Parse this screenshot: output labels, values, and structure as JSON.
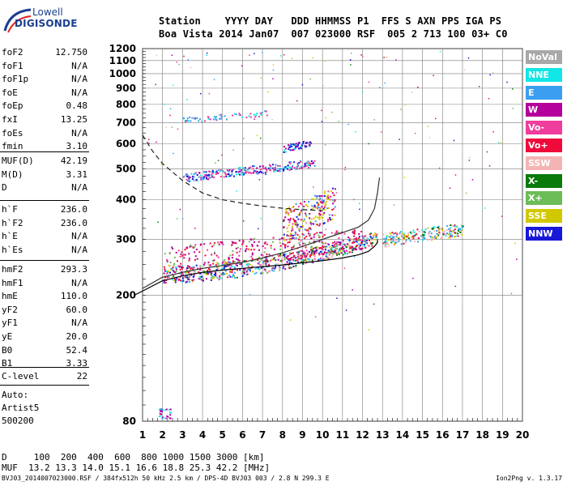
{
  "logo": {
    "line1": "Lowell",
    "line2": "DIGISONDE"
  },
  "header": {
    "row1": "Station    YYYY DAY   DDD HHMMSS P1  FFS S AXN PPS IGA PS",
    "row2": "Boa Vista 2014 Jan07  007 023000 RSF  005 2 713 100 03+ C0"
  },
  "params_group1": [
    {
      "name": "foF2",
      "value": "12.750"
    },
    {
      "name": "foF1",
      "value": "N/A"
    },
    {
      "name": "foF1p",
      "value": "N/A"
    },
    {
      "name": "foE",
      "value": "N/A"
    },
    {
      "name": "foEp",
      "value": "0.48"
    },
    {
      "name": "fxI",
      "value": "13.25"
    },
    {
      "name": "foEs",
      "value": "N/A"
    },
    {
      "name": "fmin",
      "value": "3.10"
    }
  ],
  "params_group2": [
    {
      "name": "MUF(D)",
      "value": "42.19"
    },
    {
      "name": "M(D)",
      "value": "3.31"
    },
    {
      "name": "D",
      "value": "N/A"
    }
  ],
  "params_group3": [
    {
      "name": "h`F",
      "value": "236.0"
    },
    {
      "name": "h`F2",
      "value": "236.0"
    },
    {
      "name": "h`E",
      "value": "N/A"
    },
    {
      "name": "h`Es",
      "value": "N/A"
    }
  ],
  "params_group4": [
    {
      "name": "hmF2",
      "value": "293.3"
    },
    {
      "name": "hmF1",
      "value": "N/A"
    },
    {
      "name": "hmE",
      "value": "110.0"
    },
    {
      "name": "yF2",
      "value": "60.0"
    },
    {
      "name": "yF1",
      "value": "N/A"
    },
    {
      "name": "yE",
      "value": "20.0"
    },
    {
      "name": "B0",
      "value": "52.4"
    },
    {
      "name": "B1",
      "value": "3.33"
    }
  ],
  "params_group5": [
    {
      "name": "C-level",
      "value": "22"
    }
  ],
  "auto": {
    "line1": "Auto:",
    "line2": "Artist5",
    "line3": "500200"
  },
  "legend": [
    {
      "label": "NoVal",
      "color": "#a8a8a8"
    },
    {
      "label": "NNE",
      "color": "#12e6e6"
    },
    {
      "label": "E",
      "color": "#3c9ef0"
    },
    {
      "label": "W",
      "color": "#b4009c"
    },
    {
      "label": "Vo-",
      "color": "#f03c9c"
    },
    {
      "label": "Vo+",
      "color": "#f00a3c"
    },
    {
      "label": "SSW",
      "color": "#f4b4b4"
    },
    {
      "label": "X-",
      "color": "#0a7a0a"
    },
    {
      "label": "X+",
      "color": "#6cbc58"
    },
    {
      "label": "SSE",
      "color": "#d2c800"
    },
    {
      "label": "NNW",
      "color": "#1818d8"
    }
  ],
  "footer": {
    "row1": "D     100  200  400  600  800 1000 1500 3000 [km]",
    "row2": "MUF  13.2 13.3 14.0 15.1 16.6 18.8 25.3 42.2 [MHz]",
    "file": "BVJ03_2014007023000.RSF / 384fx512h 50 kHz 2.5 km / DPS-4D BVJ03 003 / 2.8 N 299.3 E",
    "version": "Ion2Png v. 1.3.17"
  },
  "chart_data": {
    "type": "scatter",
    "title": "",
    "xlabel": "",
    "ylabel": "",
    "xlim": [
      1,
      20
    ],
    "ylim": [
      80,
      1200
    ],
    "x_ticks": [
      1,
      2,
      3,
      4,
      5,
      6,
      7,
      8,
      9,
      10,
      11,
      12,
      13,
      14,
      15,
      16,
      17,
      18,
      19,
      20
    ],
    "y_ticks": [
      80,
      200,
      300,
      400,
      500,
      600,
      700,
      800,
      900,
      1000,
      1100,
      1200
    ],
    "y_scale": "log",
    "grid": true,
    "profile_curve": {
      "x": [
        0.6,
        2,
        3,
        4,
        5,
        6,
        7,
        8,
        9,
        10,
        11,
        11.8,
        12.3,
        12.6,
        12.75,
        12.75
      ],
      "y": [
        200,
        222,
        230,
        236,
        240,
        243,
        246,
        249,
        253,
        257,
        262,
        268,
        275,
        285,
        293,
        300
      ]
    },
    "virtual_trace": {
      "x": [
        1,
        2,
        3,
        4,
        5,
        6,
        7,
        8,
        9,
        10,
        11,
        11.8,
        12.3,
        12.6,
        12.75,
        12.85
      ],
      "y": [
        210,
        228,
        236,
        243,
        248,
        254,
        262,
        272,
        285,
        300,
        315,
        328,
        345,
        375,
        420,
        470
      ]
    },
    "dashed_curve": {
      "x": [
        1,
        1.5,
        2,
        3,
        4,
        5,
        6,
        7,
        8,
        9,
        10
      ],
      "y": [
        640,
        570,
        520,
        460,
        420,
        400,
        390,
        382,
        376,
        372,
        370
      ]
    },
    "echo_clusters": [
      {
        "name": "F-layer 1st hop",
        "x_range": [
          2,
          12.7
        ],
        "y_from": [
          235,
          305
        ],
        "count": 700
      },
      {
        "name": "F-layer band",
        "x_range": [
          2,
          12
        ],
        "y_from": [
          260,
          330
        ],
        "count": 300
      },
      {
        "name": "2nd hop",
        "x_range": [
          3,
          9.6
        ],
        "y_from": [
          470,
          560
        ],
        "count": 260
      },
      {
        "name": "spread F",
        "x_range": [
          8,
          10.6
        ],
        "y_from": [
          330,
          440
        ],
        "count": 220
      },
      {
        "name": "high trace",
        "x_range": [
          8,
          9.4
        ],
        "y_from": [
          580,
          630
        ],
        "count": 60
      },
      {
        "name": "3rd hop",
        "x_range": [
          3,
          7.2
        ],
        "y_from": [
          715,
          780
        ],
        "count": 60
      },
      {
        "name": "oblique",
        "x_range": [
          13,
          17
        ],
        "y_from": [
          300,
          340
        ],
        "count": 220
      }
    ]
  }
}
